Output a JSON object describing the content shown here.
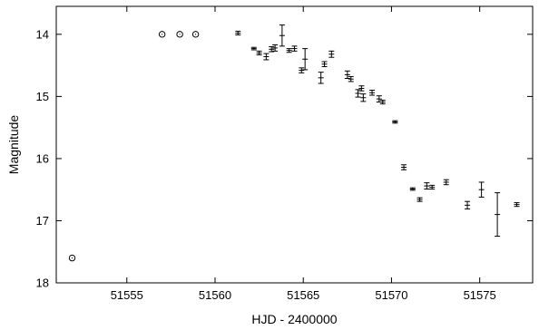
{
  "chart_data": {
    "type": "scatter",
    "xlabel": "HJD - 2400000",
    "ylabel": "Magnitude",
    "xlim": [
      51551,
      51578
    ],
    "ylim": [
      18,
      13.55
    ],
    "y_inverted": true,
    "xticks": [
      51555,
      51560,
      51565,
      51570,
      51575
    ],
    "xtick_labels": [
      "51555",
      "51560",
      "51565",
      "51570",
      "51575"
    ],
    "yticks": [
      14,
      15,
      16,
      17,
      18
    ],
    "ytick_labels": [
      "14",
      "15",
      "16",
      "17",
      "18"
    ],
    "grid": false,
    "legend": "none",
    "series": [
      {
        "marker": "open-circle",
        "points": [
          {
            "x": 51551.9,
            "y": 17.6
          },
          {
            "x": 51557.0,
            "y": 14.0
          },
          {
            "x": 51558.0,
            "y": 14.0
          },
          {
            "x": 51558.9,
            "y": 14.0
          }
        ]
      },
      {
        "marker": "errorbar",
        "points": [
          {
            "x": 51561.3,
            "y": 13.98,
            "err": 0.03
          },
          {
            "x": 51562.2,
            "y": 14.23,
            "err": 0.02
          },
          {
            "x": 51562.5,
            "y": 14.3,
            "err": 0.03
          },
          {
            "x": 51562.9,
            "y": 14.36,
            "err": 0.05
          },
          {
            "x": 51563.2,
            "y": 14.24,
            "err": 0.04
          },
          {
            "x": 51563.4,
            "y": 14.22,
            "err": 0.05
          },
          {
            "x": 51563.8,
            "y": 14.02,
            "err": 0.17
          },
          {
            "x": 51564.2,
            "y": 14.26,
            "err": 0.03
          },
          {
            "x": 51564.5,
            "y": 14.23,
            "err": 0.04
          },
          {
            "x": 51564.9,
            "y": 14.58,
            "err": 0.04
          },
          {
            "x": 51565.1,
            "y": 14.4,
            "err": 0.17
          },
          {
            "x": 51566.0,
            "y": 14.7,
            "err": 0.09
          },
          {
            "x": 51566.2,
            "y": 14.48,
            "err": 0.04
          },
          {
            "x": 51566.6,
            "y": 14.32,
            "err": 0.05
          },
          {
            "x": 51567.5,
            "y": 14.65,
            "err": 0.06
          },
          {
            "x": 51567.7,
            "y": 14.72,
            "err": 0.04
          },
          {
            "x": 51568.1,
            "y": 14.95,
            "err": 0.06
          },
          {
            "x": 51568.3,
            "y": 14.87,
            "err": 0.04
          },
          {
            "x": 51568.4,
            "y": 15.02,
            "err": 0.06
          },
          {
            "x": 51568.9,
            "y": 14.94,
            "err": 0.04
          },
          {
            "x": 51569.3,
            "y": 15.04,
            "err": 0.05
          },
          {
            "x": 51569.5,
            "y": 15.09,
            "err": 0.03
          },
          {
            "x": 51570.2,
            "y": 15.41,
            "err": 0.02
          },
          {
            "x": 51570.7,
            "y": 16.14,
            "err": 0.04
          },
          {
            "x": 51571.2,
            "y": 16.49,
            "err": 0.02
          },
          {
            "x": 51571.6,
            "y": 16.66,
            "err": 0.03
          },
          {
            "x": 51572.0,
            "y": 16.44,
            "err": 0.05
          },
          {
            "x": 51572.3,
            "y": 16.46,
            "err": 0.03
          },
          {
            "x": 51573.1,
            "y": 16.38,
            "err": 0.04
          },
          {
            "x": 51574.3,
            "y": 16.75,
            "err": 0.06
          },
          {
            "x": 51575.1,
            "y": 16.5,
            "err": 0.12
          },
          {
            "x": 51576.0,
            "y": 16.9,
            "err": 0.35
          },
          {
            "x": 51577.1,
            "y": 16.74,
            "err": 0.03
          }
        ]
      }
    ]
  }
}
